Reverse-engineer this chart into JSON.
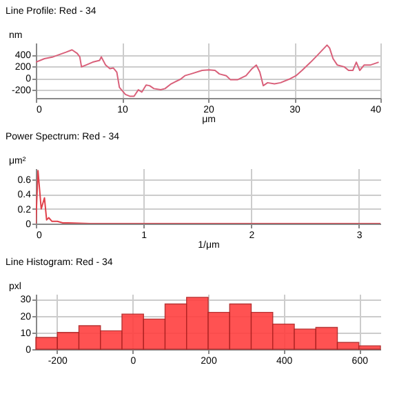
{
  "chart_data": [
    {
      "type": "line",
      "title": "Line Profile: Red  -  34",
      "xlabel": "μm",
      "ylabel": "nm",
      "xlim": [
        0,
        40
      ],
      "xticks": [
        0,
        10,
        20,
        30,
        40
      ],
      "ylim": [
        -340,
        600
      ],
      "yticks": [
        -200,
        0,
        200,
        400
      ],
      "grid": true,
      "marker": "none",
      "series": [
        {
          "color": "#d9607a",
          "x": [
            0,
            1,
            2,
            3.5,
            4.2,
            4.8,
            5.1,
            5.3,
            5.8,
            6.6,
            7.4,
            7.6,
            8.1,
            8.6,
            9.0,
            9.4,
            9.7,
            10.4,
            10.9,
            11.4,
            11.9,
            12.3,
            12.8,
            13.2,
            13.7,
            14.5,
            15.0,
            15.7,
            16.8,
            17.3,
            18.0,
            19.3,
            20.1,
            20.8,
            21.3,
            22.1,
            22.6,
            23.4,
            24.4,
            25.1,
            25.6,
            26.0,
            26.4,
            26.9,
            27.7,
            28.4,
            29.4,
            30.2,
            30.9,
            31.9,
            32.7,
            33.8,
            34.1,
            34.5,
            35.0,
            35.8,
            36.3,
            36.8,
            37.2,
            37.6,
            38.1,
            38.8,
            39.8
          ],
          "values": [
            270,
            330,
            360,
            440,
            480,
            420,
            360,
            190,
            220,
            270,
            300,
            360,
            220,
            160,
            170,
            100,
            -160,
            -280,
            -310,
            -310,
            -200,
            -240,
            -120,
            -130,
            -180,
            -200,
            -180,
            -100,
            -20,
            40,
            70,
            130,
            140,
            130,
            70,
            40,
            -30,
            -30,
            40,
            160,
            220,
            100,
            -130,
            -80,
            -100,
            -80,
            -20,
            40,
            130,
            270,
            390,
            560,
            510,
            330,
            220,
            190,
            130,
            130,
            270,
            130,
            220,
            220,
            270
          ]
        }
      ]
    },
    {
      "type": "line",
      "title": "Power Spectrum: Red  -  34",
      "xlabel": "1/μm",
      "ylabel": "μm²",
      "xlim": [
        0,
        3.2
      ],
      "xticks": [
        0,
        1,
        2,
        3
      ],
      "ylim": [
        0,
        0.75
      ],
      "yticks": [
        0,
        0.2,
        0.4,
        0.6
      ],
      "grid": true,
      "marker": "none",
      "series": [
        {
          "color": "#e0404a",
          "x": [
            0,
            0.02,
            0.05,
            0.08,
            0.1,
            0.12,
            0.15,
            0.2,
            0.25,
            0.3,
            0.5,
            1,
            2,
            3.2
          ],
          "values": [
            0,
            0.72,
            0.2,
            0.35,
            0.05,
            0.08,
            0.03,
            0.03,
            0.01,
            0.01,
            0,
            0,
            0,
            0
          ]
        }
      ]
    },
    {
      "type": "histogram",
      "title": "Line Histogram: Red  -  34",
      "ylabel": "pxl",
      "xlim": [
        -256,
        656
      ],
      "xticks": [
        -200,
        0,
        200,
        400,
        600
      ],
      "ylim": [
        0,
        33
      ],
      "yticks": [
        0,
        10,
        20,
        30
      ],
      "grid": true,
      "color": "#ff4040",
      "bins": [
        -256,
        -199,
        -142,
        -85,
        -28,
        29,
        86,
        143,
        200,
        257,
        314,
        371,
        428,
        485,
        542,
        599,
        656
      ],
      "values": [
        7,
        10,
        14,
        11,
        21,
        18,
        27,
        31,
        22,
        27,
        22,
        15,
        12,
        13,
        4,
        2
      ]
    }
  ]
}
